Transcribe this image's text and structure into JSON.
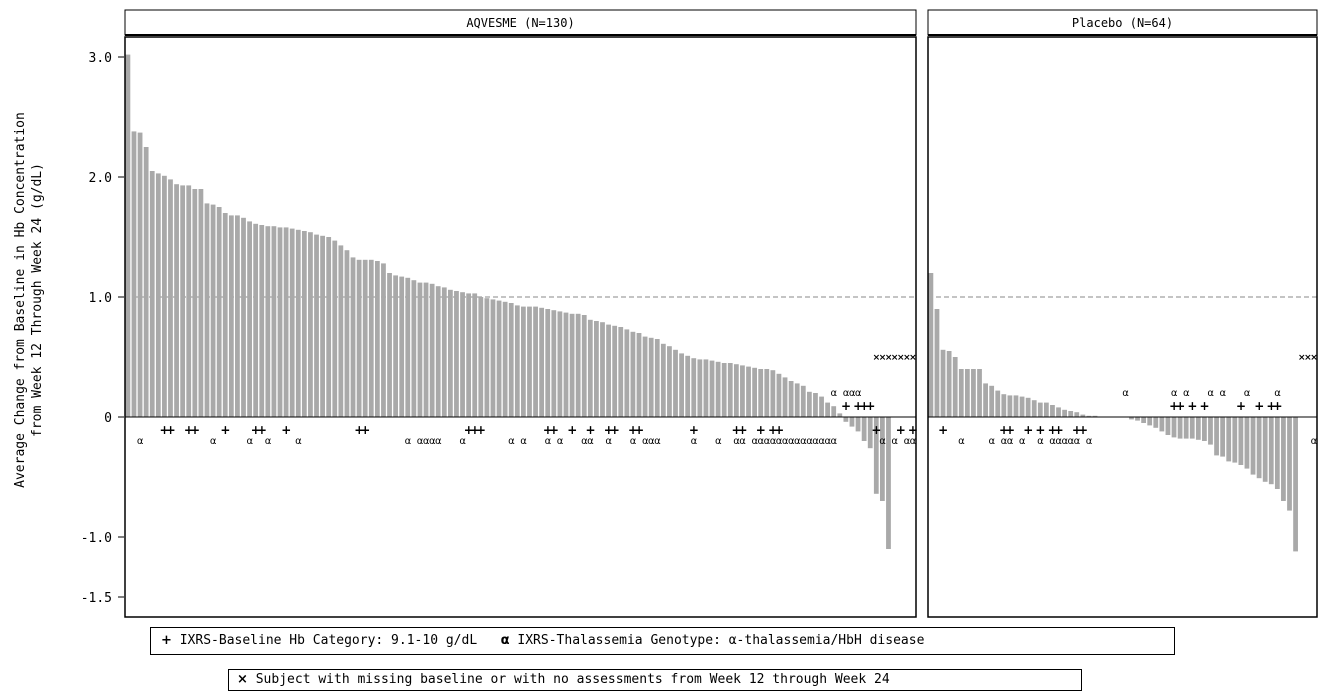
{
  "chart_data": {
    "type": "bar",
    "ylabel_line1": "Average Change from Baseline in Hb Concentration",
    "ylabel_line2": "from Week 12 Through Week 24 (g/dL)",
    "ylim": [
      -1.5,
      3.0
    ],
    "yticks": [
      {
        "value": 3.0,
        "label": "3.0"
      },
      {
        "value": 2.0,
        "label": "2.0"
      },
      {
        "value": 1.0,
        "label": "1.0"
      },
      {
        "value": 0,
        "label": "0"
      },
      {
        "value": -1.0,
        "label": "-1.0"
      },
      {
        "value": -1.5,
        "label": "-1.5"
      }
    ],
    "reference_line": 1.0,
    "bar_color": "#a9a9a9",
    "panels": [
      {
        "title": "AQVESME (N=130)",
        "slots": 130,
        "values": [
          3.02,
          2.38,
          2.37,
          2.25,
          2.05,
          2.03,
          2.01,
          1.98,
          1.94,
          1.93,
          1.93,
          1.9,
          1.9,
          1.78,
          1.77,
          1.75,
          1.7,
          1.68,
          1.68,
          1.66,
          1.63,
          1.61,
          1.6,
          1.59,
          1.59,
          1.58,
          1.58,
          1.57,
          1.56,
          1.55,
          1.54,
          1.52,
          1.51,
          1.5,
          1.47,
          1.43,
          1.39,
          1.33,
          1.31,
          1.31,
          1.31,
          1.3,
          1.28,
          1.2,
          1.18,
          1.17,
          1.16,
          1.14,
          1.12,
          1.12,
          1.11,
          1.09,
          1.08,
          1.06,
          1.05,
          1.04,
          1.03,
          1.03,
          1.0,
          0.99,
          0.98,
          0.97,
          0.96,
          0.95,
          0.93,
          0.92,
          0.92,
          0.92,
          0.91,
          0.9,
          0.89,
          0.88,
          0.87,
          0.86,
          0.86,
          0.85,
          0.81,
          0.8,
          0.79,
          0.77,
          0.76,
          0.75,
          0.73,
          0.71,
          0.7,
          0.67,
          0.66,
          0.65,
          0.61,
          0.59,
          0.56,
          0.53,
          0.51,
          0.49,
          0.48,
          0.48,
          0.47,
          0.46,
          0.45,
          0.45,
          0.44,
          0.43,
          0.42,
          0.41,
          0.4,
          0.4,
          0.39,
          0.36,
          0.33,
          0.3,
          0.28,
          0.26,
          0.21,
          0.2,
          0.17,
          0.12,
          0.09,
          0.03,
          -0.04,
          -0.08,
          -0.12,
          -0.2,
          -0.26,
          -0.64,
          -0.7,
          -1.1
        ],
        "plus": [
          7,
          8,
          11,
          12,
          17,
          22,
          23,
          27,
          39,
          40,
          57,
          58,
          59,
          70,
          71,
          74,
          77,
          80,
          81,
          84,
          85,
          94,
          101,
          102,
          105,
          107,
          108
        ],
        "alpha": [
          3,
          15,
          21,
          24,
          29,
          47,
          49,
          50,
          51,
          52,
          56,
          64,
          66,
          70,
          72,
          76,
          77,
          80,
          84,
          86,
          87,
          88,
          94,
          98,
          101,
          102,
          104,
          105,
          106,
          107,
          108,
          109,
          110,
          111,
          112,
          113,
          114,
          115,
          116,
          117
        ],
        "top_alpha": [
          117,
          119,
          120,
          121
        ],
        "top_plus": [
          119,
          121,
          122,
          123
        ],
        "tail_plus": [
          124,
          128,
          130
        ],
        "tail_alpha": [
          125,
          127,
          129,
          130
        ],
        "missing": [
          124,
          125,
          126,
          127,
          128,
          129,
          130
        ]
      },
      {
        "title": "Placebo (N=64)",
        "slots": 64,
        "values": [
          1.2,
          0.9,
          0.56,
          0.55,
          0.5,
          0.4,
          0.4,
          0.4,
          0.4,
          0.28,
          0.26,
          0.22,
          0.19,
          0.18,
          0.18,
          0.17,
          0.16,
          0.14,
          0.12,
          0.12,
          0.1,
          0.08,
          0.06,
          0.05,
          0.04,
          0.02,
          0.01,
          0.01,
          0.0,
          0.0,
          0.0,
          0.0,
          0.0,
          -0.02,
          -0.03,
          -0.05,
          -0.07,
          -0.09,
          -0.12,
          -0.15,
          -0.17,
          -0.18,
          -0.18,
          -0.18,
          -0.19,
          -0.2,
          -0.23,
          -0.32,
          -0.33,
          -0.37,
          -0.38,
          -0.4,
          -0.43,
          -0.48,
          -0.51,
          -0.54,
          -0.56,
          -0.6,
          -0.7,
          -0.78,
          -1.12
        ],
        "plus": [
          3,
          13,
          14,
          17,
          19,
          21,
          22,
          25,
          26
        ],
        "alpha": [
          6,
          11,
          13,
          14,
          16,
          19,
          21,
          22,
          23,
          24,
          25,
          27
        ],
        "top_plus": [
          41,
          42,
          44,
          46,
          52,
          55,
          57,
          58
        ],
        "top_alpha": [
          33,
          41,
          43,
          47,
          49,
          53,
          58
        ],
        "tail_alpha": [
          64
        ],
        "missing": [
          62,
          63,
          64
        ]
      }
    ],
    "legend": [
      {
        "symbol": "+",
        "text": "IXRS-Baseline Hb Category: 9.1-10 g/dL"
      },
      {
        "symbol": "α",
        "text": "IXRS-Thalassemia Genotype: α-thalassemia/HbH disease"
      },
      {
        "symbol": "×",
        "text": "Subject with missing baseline or with no assessments from Week 12 through Week 24"
      }
    ]
  }
}
